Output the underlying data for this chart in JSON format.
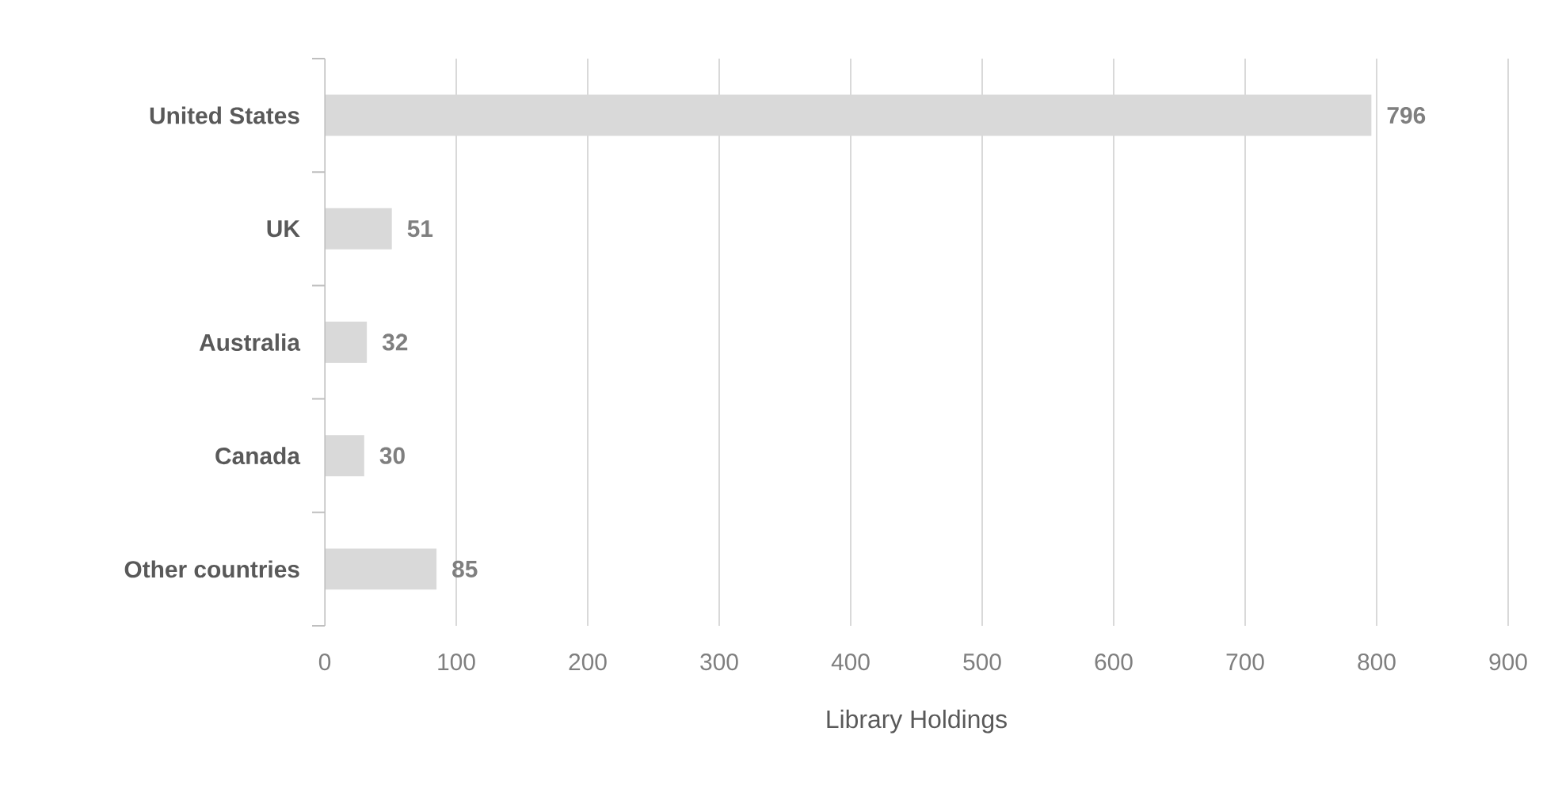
{
  "chart_data": {
    "type": "bar",
    "orientation": "horizontal",
    "categories": [
      "United States",
      "UK",
      "Australia",
      "Canada",
      "Other countries"
    ],
    "values": [
      796,
      51,
      32,
      30,
      85
    ],
    "color": "#d9d9d9",
    "xlabel": "Library Holdings",
    "xlim": [
      0,
      900
    ],
    "xticks": [
      0,
      100,
      200,
      300,
      400,
      500,
      600,
      700,
      800,
      900
    ],
    "grid": "x",
    "data_labels": true
  }
}
